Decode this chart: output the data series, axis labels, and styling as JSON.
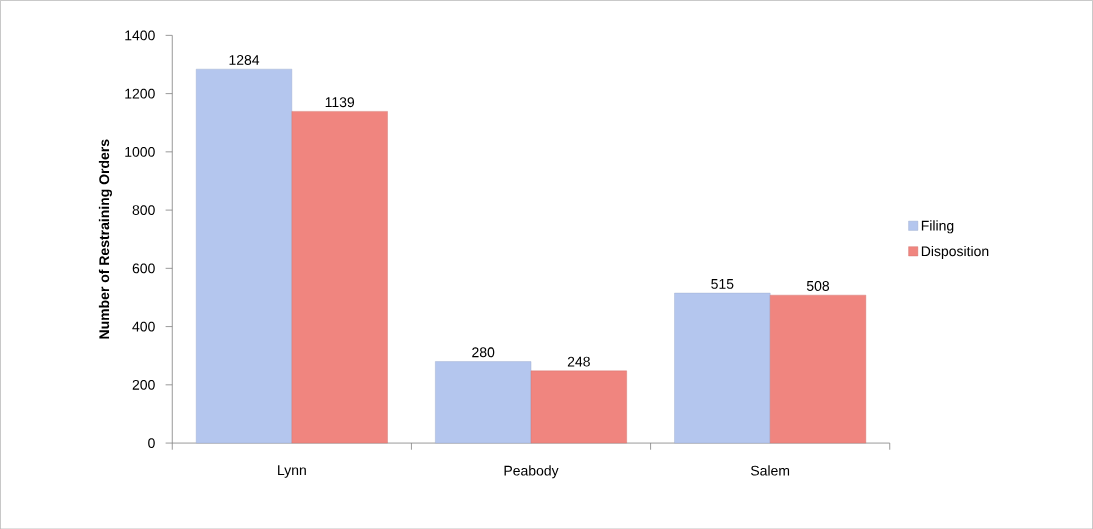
{
  "chart_data": {
    "type": "bar",
    "ylabel": "Number of Restraining Orders",
    "categories": [
      "Lynn",
      "Peabody",
      "Salem"
    ],
    "series": [
      {
        "name": "Filing",
        "color": "#b4c6ee",
        "values": [
          1284,
          280,
          515
        ]
      },
      {
        "name": "Disposition",
        "color": "#f0857f",
        "values": [
          1139,
          248,
          508
        ]
      }
    ],
    "ylim": [
      0,
      1400
    ],
    "yticks": [
      0,
      200,
      400,
      600,
      800,
      1000,
      1200,
      1400
    ],
    "data_labels": true,
    "legend": "right",
    "grid": false
  }
}
